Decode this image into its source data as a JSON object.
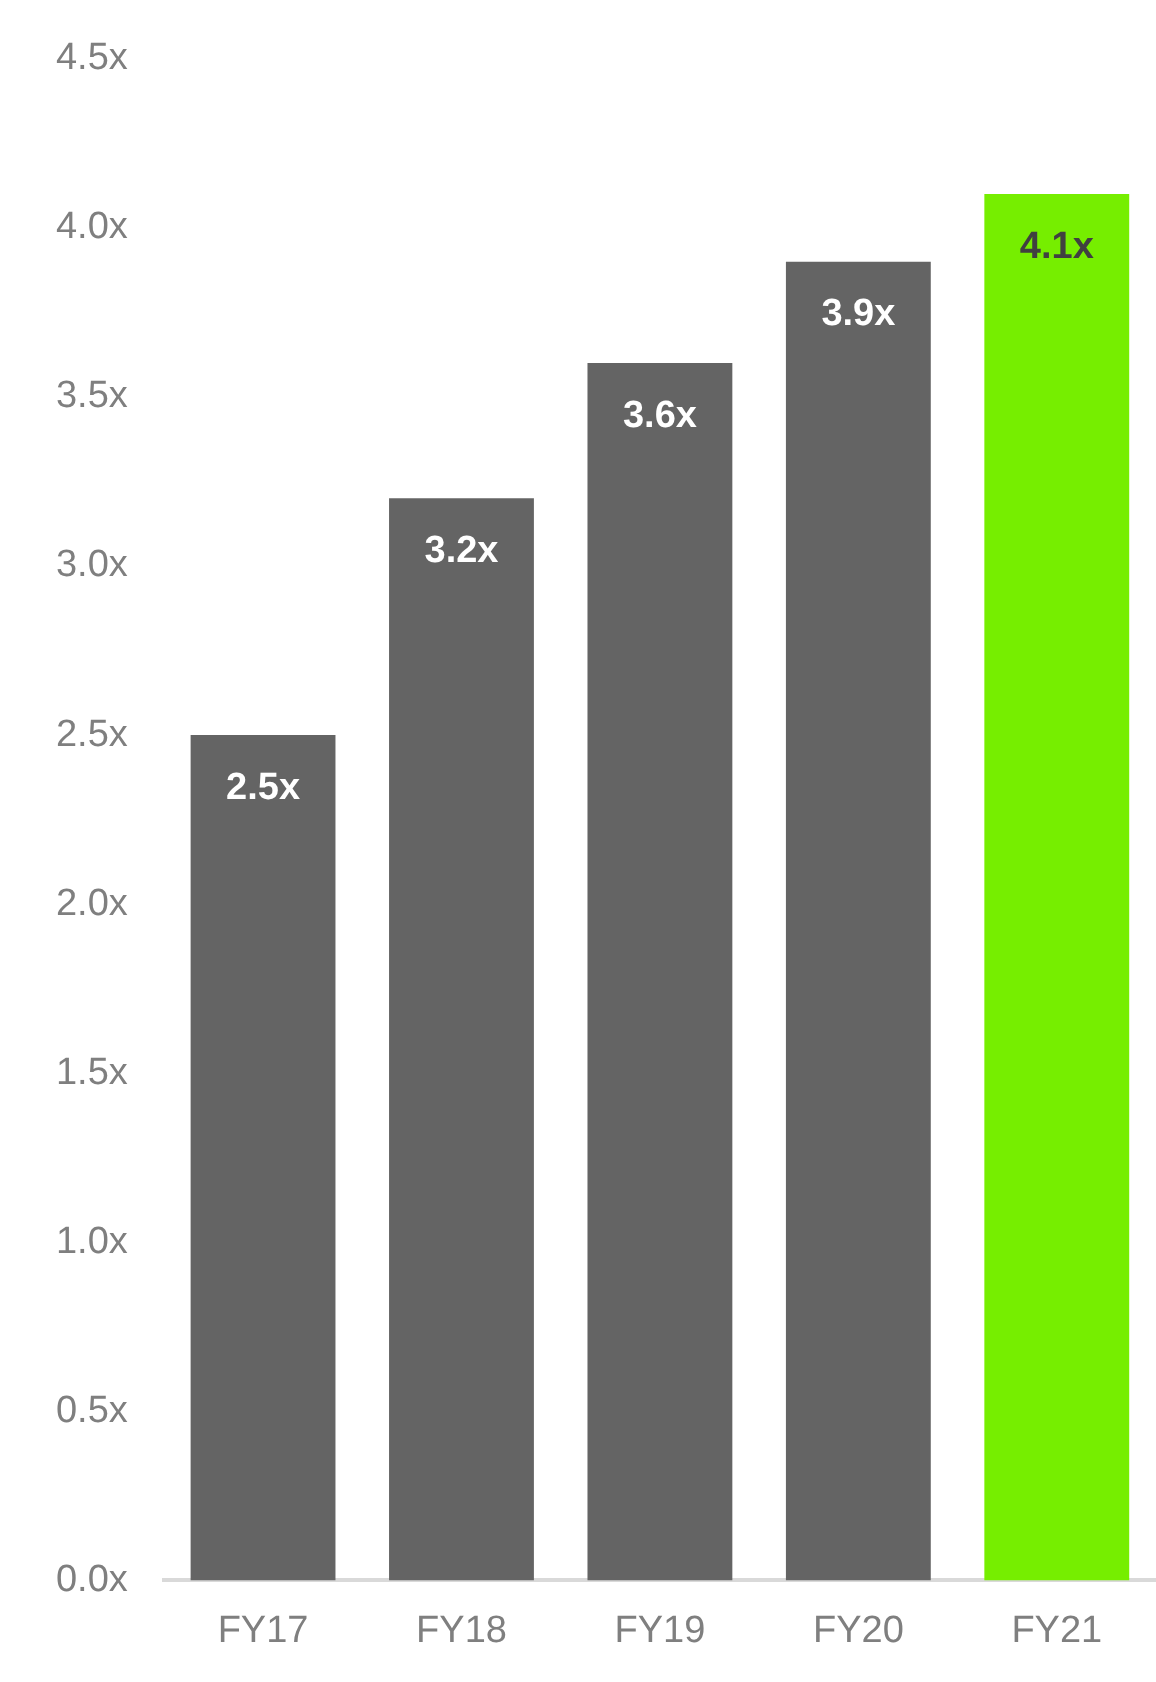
{
  "chart_data": {
    "type": "bar",
    "categories": [
      "FY17",
      "FY18",
      "FY19",
      "FY20",
      "FY21"
    ],
    "values": [
      2.5,
      3.2,
      3.6,
      3.9,
      4.1
    ],
    "colors": [
      "#646464",
      "#646464",
      "#646464",
      "#646464",
      "#76ee00"
    ],
    "value_labels": [
      "2.5x",
      "3.2x",
      "3.6x",
      "3.9x",
      "4.1x"
    ],
    "ylim": [
      0,
      4.5
    ],
    "yticks": [
      {
        "value": 0,
        "label": "0.0x"
      },
      {
        "value": 0.5,
        "label": "0.5x"
      },
      {
        "value": 1,
        "label": "1.0x"
      },
      {
        "value": 1.5,
        "label": "1.5x"
      },
      {
        "value": 2,
        "label": "2.0x"
      },
      {
        "value": 2.5,
        "label": "2.5x"
      },
      {
        "value": 3,
        "label": "3.0x"
      },
      {
        "value": 3.5,
        "label": "3.5x"
      },
      {
        "value": 4,
        "label": "4.0x"
      },
      {
        "value": 4.5,
        "label": "4.5x"
      }
    ],
    "grid": false,
    "legend": false
  }
}
